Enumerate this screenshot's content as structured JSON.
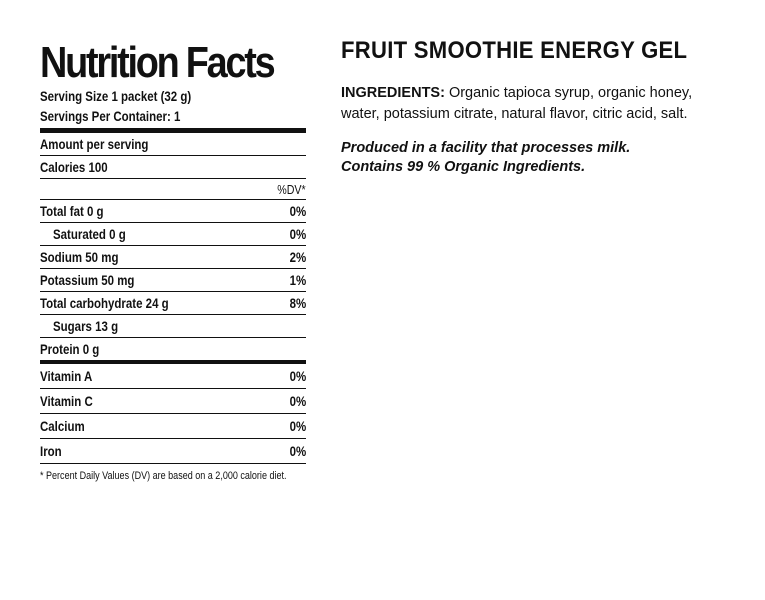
{
  "nutrition": {
    "title": "Nutrition Facts",
    "serving_size": "Serving Size 1 packet (32 g)",
    "servings_per_container": "Servings Per Container: 1",
    "amount_per_serving": "Amount per serving",
    "calories": "Calories  100",
    "dv_header": "%DV*",
    "rows": [
      {
        "label": "Total fat  0 g",
        "dv": "0%"
      },
      {
        "label": "Saturated 0 g",
        "dv": "0%"
      },
      {
        "label": "Sodium  50 mg",
        "dv": "2%"
      },
      {
        "label": "Potassium  50 mg",
        "dv": "1%"
      },
      {
        "label": "Total carbohydrate 24 g",
        "dv": "8%"
      },
      {
        "label": "Sugars 13 g",
        "dv": ""
      },
      {
        "label": "Protein  0 g",
        "dv": ""
      }
    ],
    "vitamins": [
      {
        "label": "Vitamin A",
        "dv": "0%"
      },
      {
        "label": "Vitamin C",
        "dv": "0%"
      },
      {
        "label": "Calcium",
        "dv": "0%"
      },
      {
        "label": "Iron",
        "dv": "0%"
      }
    ],
    "footnote": "* Percent Daily Values (DV) are based on a 2,000 calorie diet."
  },
  "product": {
    "title": "FRUIT SMOOTHIE ENERGY GEL",
    "ingredients_label": "INGREDIENTS:",
    "ingredients_text": " Organic tapioca syrup, organic honey, water, potassium citrate, natural flavor, citric acid, salt.",
    "facility_note": "Produced in a facility that processes milk.",
    "organic_note": "Contains 99 % Organic Ingredients."
  }
}
